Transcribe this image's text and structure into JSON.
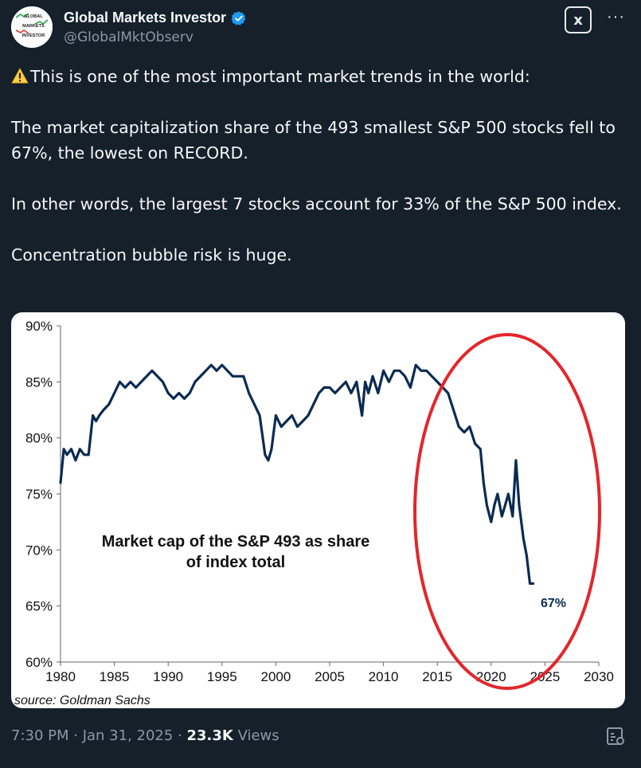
{
  "author": {
    "name": "Global Markets Investor",
    "handle": "@GlobalMktObserv",
    "avatar_lines": [
      "GLOBAL",
      "MARKETS",
      "INVESTOR"
    ]
  },
  "header": {
    "grok_label": "x",
    "more_label": "···"
  },
  "tweet": {
    "lines": [
      "This is one of the most important market trends in the world:",
      "The market capitalization share of the 493 smallest S&P 500 stocks fell to 67%, the lowest on RECORD.",
      "In other words, the largest 7 stocks account for 33% of the S&P 500 index.",
      "Concentration bubble risk is huge."
    ]
  },
  "footer": {
    "timestamp": "7:30 PM · Jan 31, 2025 · ",
    "views_count": "23.3K",
    "views_label": " Views"
  },
  "colors": {
    "background": "#15202b",
    "line": "#0b2b52",
    "circle": "#e3262b",
    "verified": "#1d9bf0"
  },
  "icons": [
    "verified-badge-icon",
    "warning-icon",
    "grok-icon",
    "more-icon",
    "stats-icon"
  ],
  "chart_data": {
    "type": "line",
    "title": "Market cap of the S&P 493 as share of index total",
    "source": "source: Goldman Sachs",
    "annotation": "67%",
    "xlim": [
      1980,
      2030
    ],
    "ylim": [
      60,
      90
    ],
    "x_ticks": [
      "1980",
      "1985",
      "1990",
      "1995",
      "2000",
      "2005",
      "2010",
      "2015",
      "2020",
      "2025",
      "2030"
    ],
    "y_ticks": [
      "60%",
      "65%",
      "70%",
      "75%",
      "80%",
      "85%",
      "90%"
    ],
    "series": [
      {
        "x": [
          1980.0,
          1980.3,
          1980.6,
          1981.0,
          1981.4,
          1981.8,
          1982.2,
          1982.6,
          1983.0,
          1983.3,
          1983.6,
          1984.0,
          1984.5,
          1985.0,
          1985.5,
          1986.0,
          1986.5,
          1987.0,
          1987.5,
          1988.0,
          1988.5,
          1989.0,
          1989.5,
          1990.0,
          1990.5,
          1991.0,
          1991.5,
          1992.0,
          1992.5,
          1993.0,
          1993.5,
          1994.0,
          1994.5,
          1995.0,
          1995.5,
          1996.0,
          1996.5,
          1997.0,
          1997.5,
          1998.0,
          1998.5,
          1999.0,
          1999.3,
          1999.6,
          2000.0,
          2000.5,
          2001.0,
          2001.5,
          2002.0,
          2002.5,
          2003.0,
          2003.5,
          2004.0,
          2004.5,
          2005.0,
          2005.5,
          2006.0,
          2006.5,
          2007.0,
          2007.5,
          2008.0,
          2008.3,
          2008.6,
          2009.0,
          2009.5,
          2010.0,
          2010.5,
          2011.0,
          2011.5,
          2012.0,
          2012.5,
          2013.0,
          2013.5,
          2014.0,
          2014.5,
          2015.0,
          2015.5,
          2016.0,
          2016.5,
          2017.0,
          2017.5,
          2018.0,
          2018.5,
          2019.0,
          2019.3,
          2019.6,
          2020.0,
          2020.3,
          2020.6,
          2021.0,
          2021.3,
          2021.6,
          2022.0,
          2022.3,
          2022.6,
          2023.0,
          2023.3,
          2023.6,
          2023.9
        ],
        "y": [
          76,
          79,
          78.5,
          79,
          78,
          79,
          78.5,
          78.5,
          82,
          81.5,
          82,
          82.5,
          83,
          84,
          85,
          84.5,
          85,
          84.5,
          85,
          85.5,
          86,
          85.5,
          85,
          84,
          83.5,
          84,
          83.5,
          84,
          85,
          85.5,
          86,
          86.5,
          86,
          86.5,
          86,
          85.5,
          85.5,
          85.5,
          84,
          83,
          82,
          78.5,
          78,
          79,
          82,
          81,
          81.5,
          82,
          81,
          81.5,
          82,
          83,
          84,
          84.5,
          84.5,
          84,
          84.5,
          85,
          84,
          85,
          82,
          85,
          84,
          85.5,
          84,
          86,
          85,
          86,
          86,
          85.5,
          84.5,
          86.5,
          86,
          86,
          85.5,
          85,
          84.5,
          84,
          82.5,
          81,
          80.5,
          81,
          79.5,
          79,
          76,
          74,
          72.5,
          74,
          75,
          73,
          74,
          75,
          73,
          78,
          74,
          71,
          69.5,
          67,
          67
        ]
      }
    ]
  }
}
